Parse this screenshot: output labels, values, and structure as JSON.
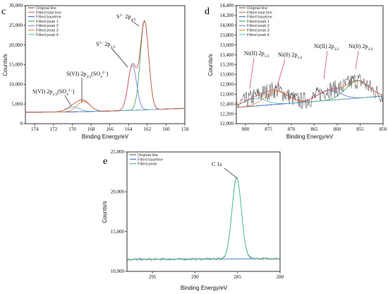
{
  "chart_data": [
    {
      "panel": "c",
      "type": "line",
      "xlabel": "Binding Energy/eV",
      "ylabel": "Counts/s",
      "xlim": [
        175,
        158
      ],
      "ylim": [
        0,
        30000
      ],
      "xticks": [
        174,
        172,
        170,
        168,
        166,
        164,
        162,
        160,
        158
      ],
      "yticks": [
        0,
        5000,
        10000,
        15000,
        20000,
        25000,
        30000
      ],
      "ytick_labels": [
        "0",
        "5,000",
        "10,000",
        "15,000",
        "20,000",
        "25,000",
        "30,000"
      ],
      "legend": [
        "Original line",
        "Fitted total line",
        "Fitted baseline",
        "Fitted peak 1",
        "Fitted peak 2",
        "Fitted peak 3",
        "Fitted peak 4"
      ],
      "colors": {
        "original": "#555555",
        "total": "#d9534f",
        "baseline": "#3366cc",
        "peak1": "#2e9e4a",
        "peak2": "#6a6ad8",
        "peak3": "#e08a2c",
        "peak4": "#4fb0c6"
      },
      "peaks": [
        {
          "name": "Fitted peak 1",
          "center": 162.3,
          "height": 22500,
          "width": 0.45
        },
        {
          "name": "Fitted peak 2",
          "center": 163.6,
          "height": 11500,
          "width": 0.45
        },
        {
          "name": "Fitted peak 3",
          "center": 168.8,
          "height": 2600,
          "width": 0.7
        },
        {
          "name": "Fitted peak 4",
          "center": 169.9,
          "height": 1200,
          "width": 0.7
        }
      ],
      "baseline": [
        [
          175,
          2900
        ],
        [
          170,
          3000
        ],
        [
          166,
          3200
        ],
        [
          158,
          3900
        ]
      ],
      "annotations": [
        {
          "text": "S²⁻ 2p3/2",
          "x": 162.3,
          "y": 25800
        },
        {
          "text": "S²⁻ 2p1/2",
          "x": 163.6,
          "y": 15300
        },
        {
          "text": "S(VI) 2p3/2(SO4²⁻)",
          "x": 168.8,
          "y": 5500
        },
        {
          "text": "S(VI) 2p1/2(SO4²⁻)",
          "x": 169.9,
          "y": 4300
        }
      ]
    },
    {
      "panel": "d",
      "type": "line",
      "xlabel": "Binding Energy/eV",
      "ylabel": "Counts/s",
      "xlim": [
        882,
        850
      ],
      "ylim": [
        12000,
        14400
      ],
      "xticks": [
        880,
        875,
        870,
        865,
        860,
        855,
        850
      ],
      "yticks": [
        12000,
        12200,
        12400,
        12600,
        12800,
        13000,
        13200,
        13400,
        13600,
        13800,
        14000,
        14200,
        14400
      ],
      "ytick_labels": [
        "12,000",
        "12,200",
        "12,400",
        "12,600",
        "12,800",
        "13,000",
        "13,200",
        "13,400",
        "13,600",
        "13,800",
        "14,000",
        "14,200",
        "14,400"
      ],
      "legend": [
        "Original line",
        "Fitted total line",
        "Fitted baseline",
        "Fitted peak 1",
        "Fitted peak 2",
        "Fitted peak 3",
        "Fitted peak 4"
      ],
      "colors": {
        "original": "#555555",
        "total": "#d9534f",
        "baseline": "#3366cc",
        "peak1": "#2e9e4a",
        "peak2": "#6a6ad8",
        "peak3": "#e08a2c",
        "peak4": "#4fb0c6"
      },
      "baseline": [
        [
          882,
          12330
        ],
        [
          850,
          12560
        ]
      ],
      "peaks": [
        {
          "name": "Fitted peak 1",
          "center": 855.6,
          "height": 350,
          "width": 2.5
        },
        {
          "name": "Fitted peak 2",
          "center": 861.8,
          "height": 200,
          "width": 2.5
        },
        {
          "name": "Fitted peak 3",
          "center": 873.3,
          "height": 260,
          "width": 2.5
        },
        {
          "name": "Fitted peak 4",
          "center": 878.0,
          "height": 150,
          "width": 2.5
        }
      ],
      "annotations": [
        {
          "text": "Ni(II) 2p1/2",
          "x": 878.0
        },
        {
          "text": "Ni(0) 2p1/2",
          "x": 873.3
        },
        {
          "text": "Ni(II) 2p3/2",
          "x": 861.8
        },
        {
          "text": "Ni(0) 2p3/2",
          "x": 855.6
        }
      ]
    },
    {
      "panel": "e",
      "type": "line",
      "xlabel": "Binding Energy/eV",
      "ylabel": "Counts/s",
      "xlim": [
        298,
        280
      ],
      "ylim": [
        10000,
        25000
      ],
      "xticks": [
        295,
        290,
        285,
        280
      ],
      "yticks": [
        10000,
        15000,
        20000,
        25000
      ],
      "ytick_labels": [
        "10,000",
        "15,000",
        "20,000",
        "25,000"
      ],
      "legend": [
        "Original line",
        "Fitted baseline",
        "Fitted peak"
      ],
      "colors": {
        "original": "#555555",
        "baseline": "#3366cc",
        "peak": "#2eb48a"
      },
      "baseline": [
        [
          298,
          11500
        ],
        [
          280,
          11600
        ]
      ],
      "peaks": [
        {
          "name": "Fitted peak",
          "center": 285.1,
          "height": 10200,
          "width": 0.55
        }
      ],
      "annotations": [
        {
          "text": "C 1s",
          "x": 285.1,
          "y": 21600
        }
      ]
    }
  ]
}
